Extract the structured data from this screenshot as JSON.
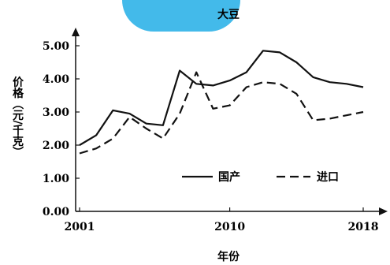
{
  "chart_data": {
    "type": "line",
    "title": "大豆",
    "xlabel": "年份",
    "ylabel": "价格（元/千克）",
    "xlim": [
      2001,
      2018
    ],
    "ylim": [
      0,
      5
    ],
    "x_ticks": [
      "2001",
      "2010",
      "2018"
    ],
    "y_ticks": [
      "0.00",
      "1.00",
      "2.00",
      "3.00",
      "4.00",
      "5.00"
    ],
    "legend_position": "lower-right",
    "x": [
      2001,
      2002,
      2003,
      2004,
      2005,
      2006,
      2007,
      2008,
      2009,
      2010,
      2011,
      2012,
      2013,
      2014,
      2015,
      2016,
      2017,
      2018
    ],
    "series": [
      {
        "name": "国产",
        "style": "solid",
        "color": "#111111",
        "values": [
          2.0,
          2.3,
          3.05,
          2.95,
          2.65,
          2.6,
          4.25,
          3.85,
          3.8,
          3.95,
          4.2,
          4.85,
          4.8,
          4.5,
          4.05,
          3.9,
          3.85,
          3.75
        ]
      },
      {
        "name": "进口",
        "style": "dashed",
        "color": "#111111",
        "values": [
          1.75,
          1.9,
          2.2,
          2.85,
          2.5,
          2.2,
          2.95,
          4.2,
          3.1,
          3.2,
          3.75,
          3.9,
          3.85,
          3.55,
          2.75,
          2.8,
          2.9,
          3.0
        ]
      }
    ]
  }
}
